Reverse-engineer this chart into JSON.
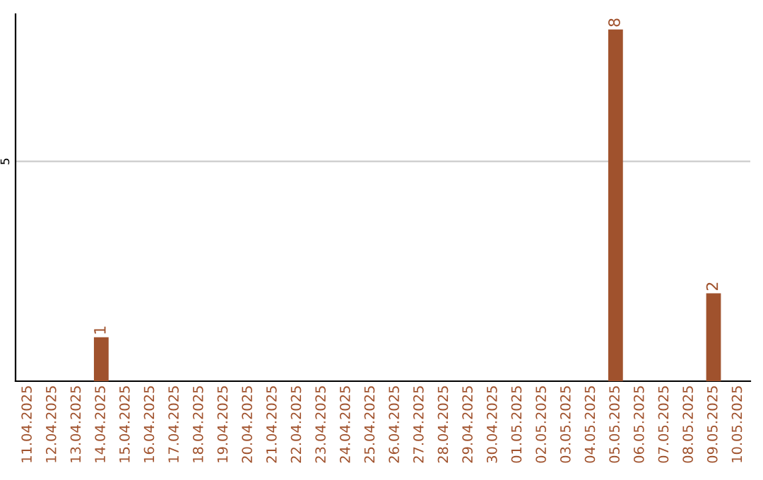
{
  "chart_data": {
    "type": "bar",
    "categories": [
      "11.04.2025",
      "12.04.2025",
      "13.04.2025",
      "14.04.2025",
      "15.04.2025",
      "16.04.2025",
      "17.04.2025",
      "18.04.2025",
      "19.04.2025",
      "20.04.2025",
      "21.04.2025",
      "22.04.2025",
      "23.04.2025",
      "24.04.2025",
      "25.04.2025",
      "26.04.2025",
      "27.04.2025",
      "28.04.2025",
      "29.04.2025",
      "30.04.2025",
      "01.05.2025",
      "02.05.2025",
      "03.05.2025",
      "04.05.2025",
      "05.05.2025",
      "06.05.2025",
      "07.05.2025",
      "08.05.2025",
      "09.05.2025",
      "10.05.2025"
    ],
    "values": [
      0,
      0,
      0,
      1,
      0,
      0,
      0,
      0,
      0,
      0,
      0,
      0,
      0,
      0,
      0,
      0,
      0,
      0,
      0,
      0,
      0,
      0,
      0,
      0,
      8,
      0,
      0,
      0,
      2,
      0
    ],
    "value_labels": [
      null,
      null,
      null,
      "1",
      null,
      null,
      null,
      null,
      null,
      null,
      null,
      null,
      null,
      null,
      null,
      null,
      null,
      null,
      null,
      null,
      null,
      null,
      null,
      null,
      "8",
      null,
      null,
      null,
      "2",
      null
    ],
    "color": "#a0522d",
    "ylim": [
      0,
      8.35
    ],
    "yticks": [
      5
    ],
    "grid": "y"
  }
}
